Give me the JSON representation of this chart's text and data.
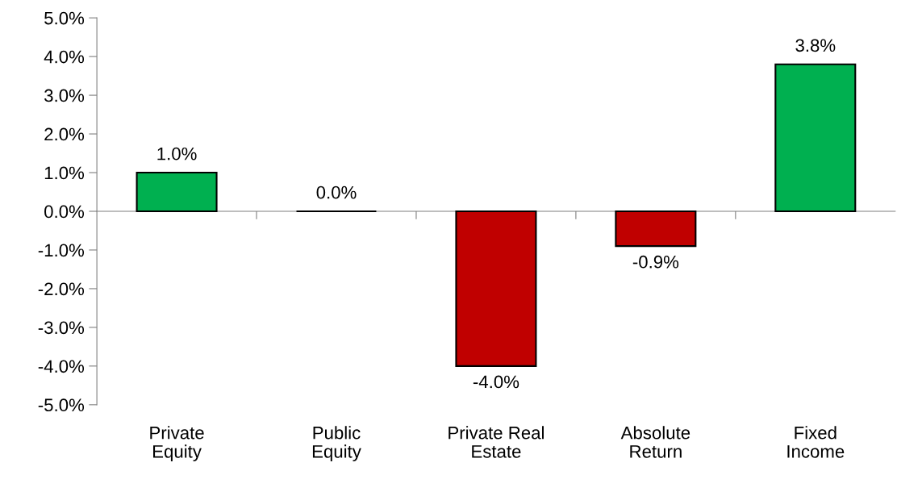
{
  "chart_data": {
    "type": "bar",
    "categories": [
      "Private\nEquity",
      "Public\nEquity",
      "Private Real\nEstate",
      "Absolute\nReturn",
      "Fixed\nIncome"
    ],
    "values": [
      1.0,
      0.0,
      -4.0,
      -0.9,
      3.8
    ],
    "colors": [
      "#00b050",
      "#000000",
      "#c00000",
      "#c00000",
      "#00b050"
    ],
    "value_labels": [
      "1.0%",
      "0.0%",
      "-4.0%",
      "-0.9%",
      "3.8%"
    ],
    "ylim": [
      -5,
      5
    ],
    "yticks": [
      {
        "value": -5,
        "label": "-5.0%"
      },
      {
        "value": -4,
        "label": "-4.0%"
      },
      {
        "value": -3,
        "label": "-3.0%"
      },
      {
        "value": -2,
        "label": "-2.0%"
      },
      {
        "value": -1,
        "label": "-1.0%"
      },
      {
        "value": 0,
        "label": "0.0%"
      },
      {
        "value": 1,
        "label": "1.0%"
      },
      {
        "value": 2,
        "label": "2.0%"
      },
      {
        "value": 3,
        "label": "3.0%"
      },
      {
        "value": 4,
        "label": "4.0%"
      },
      {
        "value": 5,
        "label": "5.0%"
      }
    ],
    "tick_labels": "xy"
  }
}
